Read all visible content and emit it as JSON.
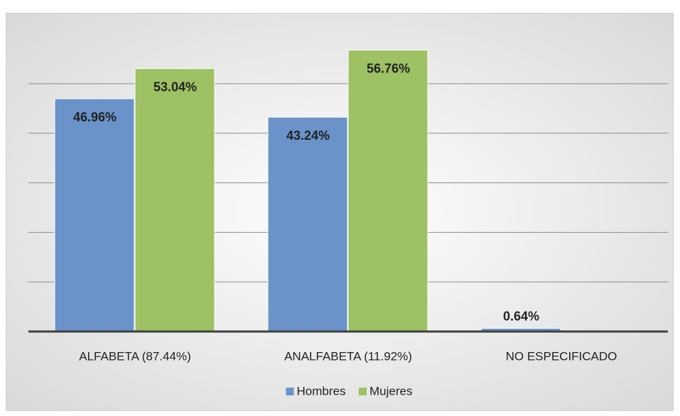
{
  "chart_data": {
    "type": "bar",
    "categories": [
      "ALFABETA (87.44%)",
      "ANALFABETA (11.92%)",
      "NO ESPECIFICADO"
    ],
    "series": [
      {
        "name": "Hombres",
        "color": "#6a93c9",
        "values": [
          46.96,
          43.24,
          0.64
        ],
        "value_labels": [
          "46.96%",
          "43.24%",
          "0.64%"
        ]
      },
      {
        "name": "Mujeres",
        "color": "#9dc163",
        "values": [
          53.04,
          56.76,
          null
        ],
        "value_labels": [
          "53.04%",
          "56.76%",
          null
        ]
      }
    ],
    "ylim": [
      0,
      60
    ],
    "yticks": [
      0,
      10,
      20,
      30,
      40,
      50
    ],
    "grid": true,
    "legend": "bottom"
  }
}
